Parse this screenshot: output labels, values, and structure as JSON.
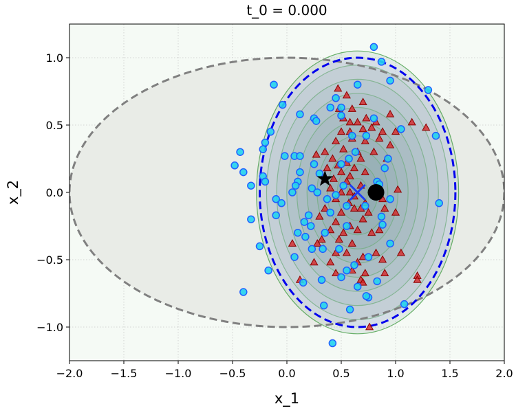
{
  "chart_data": {
    "type": "scatter",
    "title": "t_0 = 0.000",
    "xlabel": "x_1",
    "ylabel": "x_2",
    "xlim": [
      -2.0,
      2.0
    ],
    "ylim": [
      -1.25,
      1.25
    ],
    "xticks": [
      -2.0,
      -1.5,
      -1.0,
      -0.5,
      0.0,
      0.5,
      1.0,
      1.5,
      2.0
    ],
    "xtick_labels": [
      "−2.0",
      "−1.5",
      "−1.0",
      "−0.5",
      "0.0",
      "0.5",
      "1.0",
      "1.5",
      "2.0"
    ],
    "yticks": [
      -1.0,
      -0.5,
      0.0,
      0.5,
      1.0
    ],
    "ytick_labels": [
      "−1.0",
      "−0.5",
      "0.0",
      "0.5",
      "1.0"
    ],
    "grid": true,
    "legend": "none",
    "colors": {
      "plot_bg": "#f5faf5",
      "grey_region_fill": "#e9ece7",
      "grey_region_edge": "#808080",
      "gaussian_fill": "#2e6b5e",
      "gaussian_edge": "#3c9a3c",
      "blue_region_fill": "#c4cbe6",
      "blue_region_edge": "#0000ee",
      "triangle_fill": "#d62728",
      "triangle_edge": "#8b0000",
      "circle_fill": "#22d3ee",
      "circle_edge": "#1f5fff"
    },
    "grey_region": {
      "center": [
        0.0,
        0.0
      ],
      "semi_axes": [
        2.0,
        1.0
      ]
    },
    "blue_region": {
      "center": [
        0.65,
        0.0
      ],
      "semi_axes": [
        0.9,
        1.0
      ]
    },
    "gaussian_contours": {
      "center": [
        0.65,
        0.0
      ],
      "levels": 10,
      "outer_semi_axes": [
        0.93,
        1.05
      ]
    },
    "markers": {
      "star": [
        0.35,
        0.1
      ],
      "cross": [
        0.65,
        0.0
      ],
      "dot": [
        0.82,
        0.0
      ]
    },
    "series": [
      {
        "marker": "triangle",
        "points": [
          [
            0.55,
            0.72
          ],
          [
            0.48,
            0.62
          ],
          [
            0.6,
            0.62
          ],
          [
            0.7,
            0.67
          ],
          [
            0.52,
            0.55
          ],
          [
            0.65,
            0.52
          ],
          [
            0.82,
            0.52
          ],
          [
            0.95,
            0.58
          ],
          [
            0.5,
            0.45
          ],
          [
            0.58,
            0.45
          ],
          [
            0.7,
            0.47
          ],
          [
            0.78,
            0.48
          ],
          [
            0.88,
            0.45
          ],
          [
            1.0,
            0.45
          ],
          [
            1.28,
            0.48
          ],
          [
            0.45,
            0.38
          ],
          [
            0.6,
            0.4
          ],
          [
            0.72,
            0.38
          ],
          [
            0.85,
            0.4
          ],
          [
            0.95,
            0.35
          ],
          [
            0.35,
            0.3
          ],
          [
            0.52,
            0.32
          ],
          [
            0.65,
            0.3
          ],
          [
            0.8,
            0.3
          ],
          [
            0.92,
            0.25
          ],
          [
            0.27,
            0.28
          ],
          [
            0.42,
            0.25
          ],
          [
            0.55,
            0.22
          ],
          [
            0.68,
            0.25
          ],
          [
            0.47,
            0.2
          ],
          [
            0.62,
            0.18
          ],
          [
            0.37,
            0.18
          ],
          [
            0.5,
            0.15
          ],
          [
            0.58,
            0.12
          ],
          [
            0.72,
            0.15
          ],
          [
            0.43,
            0.1
          ],
          [
            0.55,
            0.08
          ],
          [
            0.68,
            0.05
          ],
          [
            0.4,
            0.03
          ],
          [
            0.5,
            0.0
          ],
          [
            0.62,
            -0.03
          ],
          [
            0.78,
            0.02
          ],
          [
            0.45,
            -0.05
          ],
          [
            0.57,
            -0.08
          ],
          [
            0.72,
            -0.08
          ],
          [
            0.88,
            -0.05
          ],
          [
            1.02,
            0.02
          ],
          [
            0.35,
            -0.12
          ],
          [
            0.5,
            -0.15
          ],
          [
            0.62,
            -0.12
          ],
          [
            0.75,
            -0.15
          ],
          [
            0.9,
            -0.12
          ],
          [
            1.0,
            -0.15
          ],
          [
            0.3,
            -0.18
          ],
          [
            0.45,
            -0.22
          ],
          [
            0.58,
            -0.25
          ],
          [
            0.7,
            -0.2
          ],
          [
            0.85,
            -0.28
          ],
          [
            0.4,
            -0.28
          ],
          [
            0.52,
            -0.3
          ],
          [
            0.65,
            -0.28
          ],
          [
            0.78,
            -0.3
          ],
          [
            0.32,
            -0.35
          ],
          [
            0.48,
            -0.35
          ],
          [
            0.6,
            -0.38
          ],
          [
            0.05,
            -0.38
          ],
          [
            0.28,
            -0.38
          ],
          [
            0.45,
            -0.45
          ],
          [
            0.55,
            -0.45
          ],
          [
            0.7,
            -0.48
          ],
          [
            0.82,
            -0.45
          ],
          [
            0.25,
            -0.52
          ],
          [
            0.4,
            -0.52
          ],
          [
            0.65,
            -0.52
          ],
          [
            0.88,
            -0.5
          ],
          [
            1.05,
            -0.45
          ],
          [
            0.6,
            -0.58
          ],
          [
            0.72,
            -0.6
          ],
          [
            0.68,
            -0.65
          ],
          [
            0.45,
            -0.6
          ],
          [
            0.9,
            -0.6
          ],
          [
            0.12,
            -0.65
          ],
          [
            0.7,
            -0.67
          ],
          [
            1.2,
            -0.62
          ],
          [
            0.76,
            -1.0
          ],
          [
            1.2,
            -0.65
          ],
          [
            0.47,
            0.77
          ],
          [
            0.58,
            0.52
          ],
          [
            0.73,
            0.55
          ],
          [
            1.15,
            0.52
          ],
          [
            0.68,
            -0.12
          ],
          [
            0.58,
            0.0
          ]
        ]
      },
      {
        "marker": "circle",
        "points": [
          [
            0.8,
            1.08
          ],
          [
            0.87,
            0.97
          ],
          [
            -0.12,
            0.8
          ],
          [
            0.65,
            0.8
          ],
          [
            0.95,
            0.83
          ],
          [
            1.3,
            0.76
          ],
          [
            0.45,
            0.7
          ],
          [
            0.4,
            0.63
          ],
          [
            0.5,
            0.63
          ],
          [
            -0.04,
            0.65
          ],
          [
            0.12,
            0.58
          ],
          [
            0.5,
            0.57
          ],
          [
            0.25,
            0.55
          ],
          [
            0.27,
            0.53
          ],
          [
            0.8,
            0.55
          ],
          [
            1.05,
            0.47
          ],
          [
            1.37,
            0.42
          ],
          [
            -0.15,
            0.45
          ],
          [
            0.6,
            0.42
          ],
          [
            0.73,
            0.42
          ],
          [
            -0.2,
            0.37
          ],
          [
            -0.22,
            0.32
          ],
          [
            0.63,
            0.3
          ],
          [
            0.07,
            0.27
          ],
          [
            -0.43,
            0.3
          ],
          [
            -0.02,
            0.27
          ],
          [
            0.12,
            0.27
          ],
          [
            0.93,
            0.25
          ],
          [
            0.57,
            0.25
          ],
          [
            0.9,
            0.18
          ],
          [
            0.5,
            0.21
          ],
          [
            0.25,
            0.21
          ],
          [
            -0.48,
            0.2
          ],
          [
            -0.4,
            0.15
          ],
          [
            -0.22,
            0.12
          ],
          [
            0.12,
            0.15
          ],
          [
            0.3,
            0.14
          ],
          [
            -0.2,
            0.08
          ],
          [
            0.1,
            0.08
          ],
          [
            0.08,
            0.05
          ],
          [
            0.23,
            0.03
          ],
          [
            0.52,
            0.05
          ],
          [
            0.28,
            0.0
          ],
          [
            0.83,
            0.08
          ],
          [
            -0.33,
            0.05
          ],
          [
            0.45,
            -0.02
          ],
          [
            0.85,
            0.06
          ],
          [
            0.05,
            0.0
          ],
          [
            0.37,
            -0.05
          ],
          [
            -0.1,
            -0.05
          ],
          [
            0.95,
            -0.05
          ],
          [
            -0.05,
            -0.08
          ],
          [
            0.55,
            -0.1
          ],
          [
            0.72,
            -0.1
          ],
          [
            0.87,
            -0.18
          ],
          [
            0.2,
            -0.17
          ],
          [
            0.4,
            -0.15
          ],
          [
            -0.1,
            -0.17
          ],
          [
            1.4,
            -0.08
          ],
          [
            0.16,
            -0.22
          ],
          [
            -0.33,
            -0.2
          ],
          [
            0.22,
            -0.25
          ],
          [
            0.88,
            -0.24
          ],
          [
            0.55,
            -0.25
          ],
          [
            0.1,
            -0.3
          ],
          [
            0.17,
            -0.33
          ],
          [
            0.35,
            -0.3
          ],
          [
            -0.25,
            -0.4
          ],
          [
            0.95,
            -0.38
          ],
          [
            0.23,
            -0.42
          ],
          [
            0.33,
            -0.42
          ],
          [
            0.48,
            -0.42
          ],
          [
            0.07,
            -0.48
          ],
          [
            0.75,
            -0.48
          ],
          [
            0.62,
            -0.54
          ],
          [
            -0.17,
            -0.58
          ],
          [
            0.55,
            -0.58
          ],
          [
            0.15,
            -0.67
          ],
          [
            0.32,
            -0.65
          ],
          [
            0.5,
            -0.63
          ],
          [
            0.83,
            -0.66
          ],
          [
            0.65,
            -0.7
          ],
          [
            0.75,
            -0.78
          ],
          [
            -0.4,
            -0.74
          ],
          [
            0.73,
            -0.77
          ],
          [
            1.08,
            -0.83
          ],
          [
            0.34,
            -0.84
          ],
          [
            0.58,
            -0.87
          ],
          [
            0.42,
            -1.12
          ]
        ]
      }
    ]
  }
}
